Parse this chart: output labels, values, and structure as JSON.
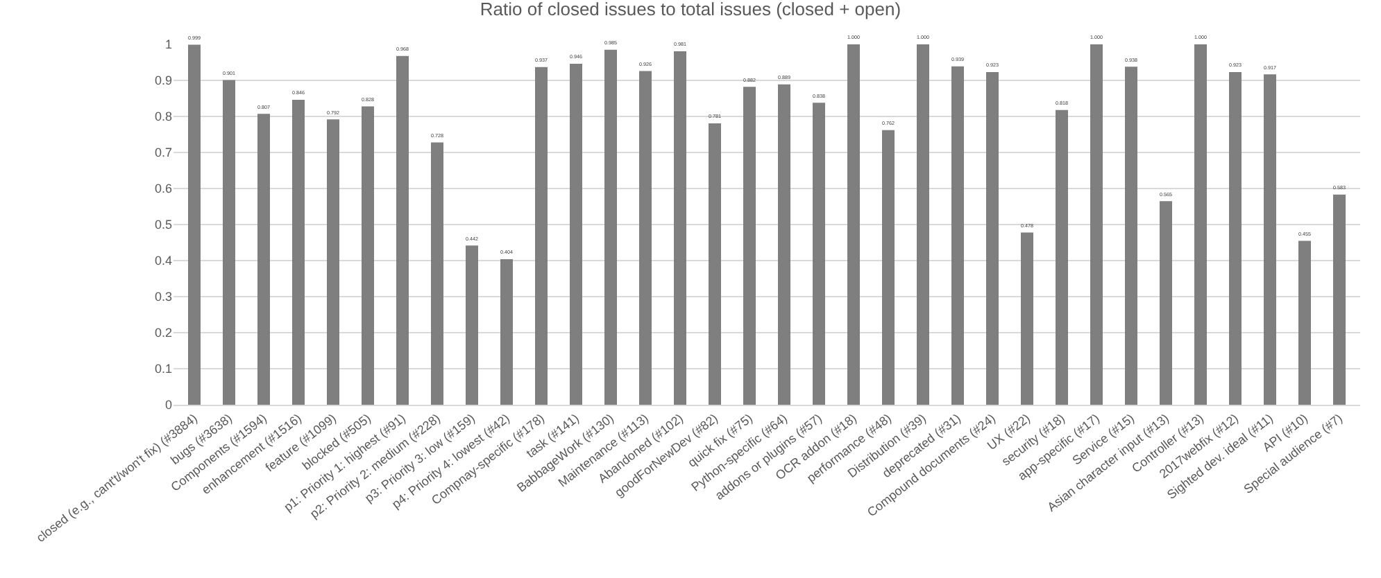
{
  "chart_data": {
    "type": "bar",
    "title": "Ratio of closed issues to total issues (closed + open)",
    "categories": [
      "closed (e.g., cant't/won't fix) (#3884)",
      "bugs (#3638)",
      "Components (#1594)",
      "enhancement (#1516)",
      "feature (#1099)",
      "blocked (#505)",
      "p1: Priority 1: highest (#91)",
      "p2: Priority 2: medium (#228)",
      "p3: Priority 3: low (#159)",
      "p4: Priority 4: lowest (#42)",
      "Compnay-specific (#178)",
      "task (#141)",
      "BabbageWork (#130)",
      "Maintenance (#113)",
      "Abandoned (#102)",
      "goodForNewDev (#82)",
      "quick fix (#75)",
      "Python-specific (#64)",
      "addons or plugins (#57)",
      "OCR addon (#18)",
      "performance (#48)",
      "Distribution (#39)",
      "deprecated (#31)",
      "Compound documents (#24)",
      "UX (#22)",
      "security (#18)",
      "app-specific (#17)",
      "Service (#15)",
      "Asian character input (#13)",
      "Controller (#13)",
      "2017webfix (#12)",
      "Sighted dev. ideal (#11)",
      "API (#10)",
      "Special audience (#7)"
    ],
    "values": [
      0.999,
      0.901,
      0.807,
      0.846,
      0.792,
      0.828,
      0.968,
      0.728,
      0.442,
      0.404,
      0.937,
      0.946,
      0.985,
      0.926,
      0.981,
      0.781,
      0.882,
      0.889,
      0.838,
      1.0,
      0.762,
      1.0,
      0.939,
      0.923,
      0.478,
      0.818,
      1.0,
      0.938,
      0.565,
      1.0,
      0.923,
      0.917,
      0.455,
      0.583
    ],
    "value_labels": [
      "0.999",
      "0.901",
      "0.807",
      "0.846",
      "0.792",
      "0.828",
      "0.968",
      "0.728",
      "0.442",
      "0.404",
      "0.937",
      "0.946",
      "0.985",
      "0.926",
      "0.981",
      "0.781",
      "0.882",
      "0.889",
      "0.838",
      "1.000",
      "0.762",
      "1.000",
      "0.939",
      "0.923",
      "0.478",
      "0.818",
      "1.000",
      "0.938",
      "0.565",
      "1.000",
      "0.923",
      "0.917",
      "0.455",
      "0.583"
    ],
    "color": "#7f7f7f",
    "ylim": [
      0,
      1
    ],
    "yticks": [
      0,
      0.1,
      0.2,
      0.3,
      0.4,
      0.5,
      0.6,
      0.7,
      0.8,
      0.9,
      1
    ],
    "grid": "y"
  }
}
